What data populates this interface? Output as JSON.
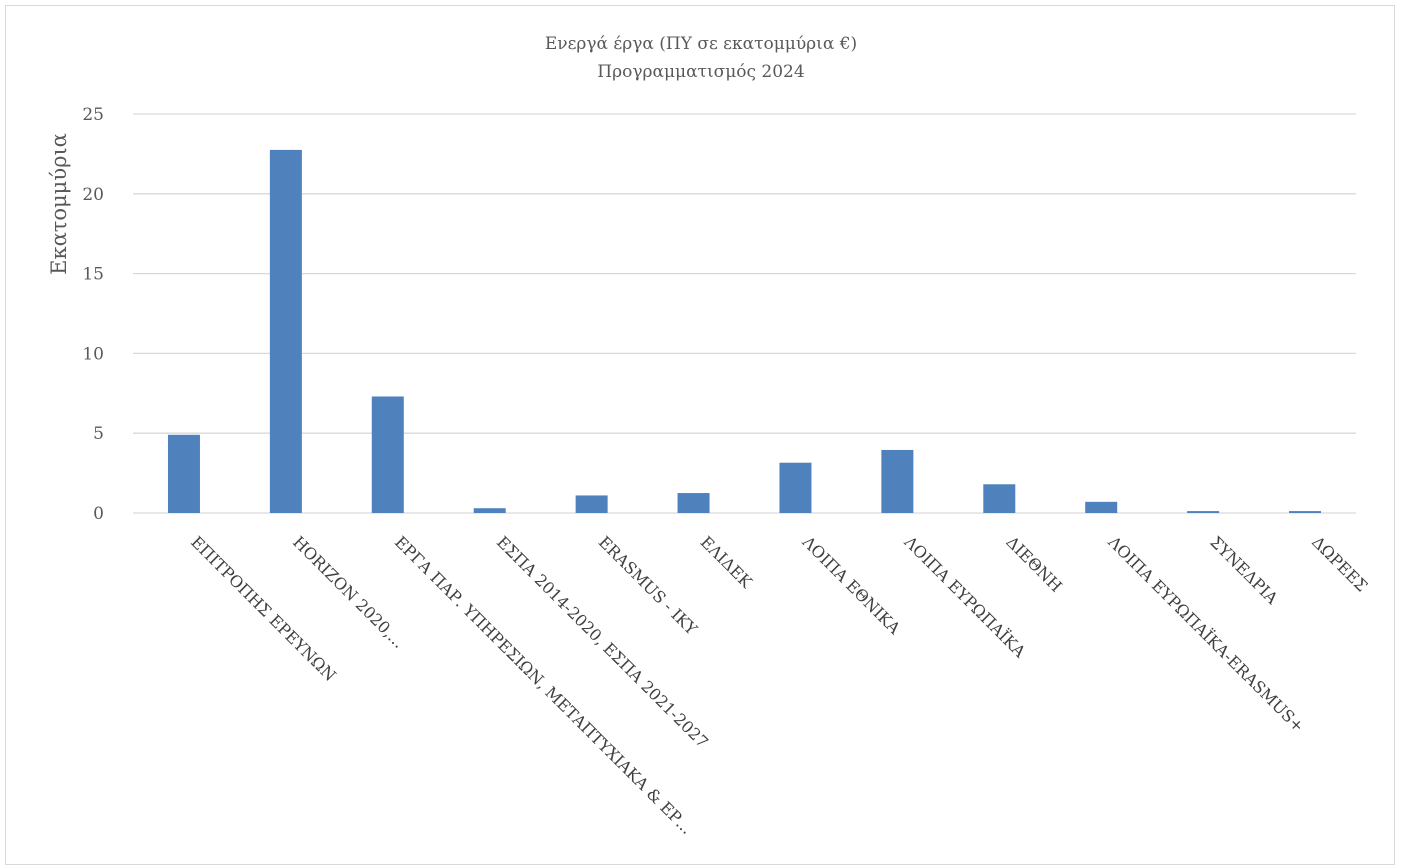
{
  "chart_data": {
    "type": "bar",
    "title": "Ενεργά έργα (ΠΥ σε εκατομμύρια €)",
    "subtitle": "Προγραμματισμός  2024",
    "ylabel": "Εκατομμύρια",
    "xlabel": "",
    "ylim": [
      0,
      25
    ],
    "yticks": [
      0,
      5,
      10,
      15,
      20,
      25
    ],
    "grid": true,
    "legend": "none",
    "bar_color": "#4f81bd",
    "grid_color": "#d9d9d9",
    "categories": [
      "ΕΠΙΤΡΟΠΗΣ ΕΡΕΥΝΩΝ",
      "HORIZON 2020,...",
      "ΕΡΓΑ ΠΑΡ. ΥΠΗΡΕΣΙΩΝ, ΜΕΤΑΠΤΥΧΙΑΚΑ & ΕΡ...",
      "ΕΣΠΑ 2014-2020, ΕΣΠΑ 2021-2027",
      "ERASMUS - IKY",
      "ΕΛΙΔΕΚ",
      "ΛΟΙΠΑ ΕΘΝΙΚΑ",
      "ΛΟΙΠΑ ΕΥΡΩΠΑΪΚΑ",
      "ΔΙΕΘΝΗ",
      "ΛΟΙΠΑ ΕΥΡΩΠΑΪΚΑ-ERASMUS+",
      "ΣΥΝΕΔΡΙΑ",
      "ΔΩΡΕΕΣ"
    ],
    "values": [
      4.9,
      22.75,
      7.3,
      0.3,
      1.1,
      1.25,
      3.15,
      3.95,
      1.8,
      0.7,
      0.12,
      0.12
    ]
  }
}
